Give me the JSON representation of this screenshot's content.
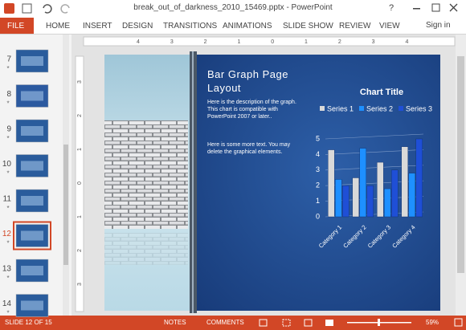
{
  "titlebar": {
    "title": "break_out_of_darkness_2010_15469.pptx - PowerPoint",
    "help": "?"
  },
  "ribbon": {
    "tabs": [
      "FILE",
      "HOME",
      "INSERT",
      "DESIGN",
      "TRANSITIONS",
      "ANIMATIONS",
      "SLIDE SHOW",
      "REVIEW",
      "VIEW"
    ],
    "sign_in": "Sign in"
  },
  "ruler": {
    "horizontal": [
      "4",
      "3",
      "2",
      "1",
      "0",
      "1",
      "2",
      "3",
      "4"
    ],
    "vertical": [
      "3",
      "2",
      "1",
      "0",
      "1",
      "2",
      "3"
    ]
  },
  "thumbnails": [
    "7",
    "8",
    "9",
    "10",
    "11",
    "12",
    "13",
    "14"
  ],
  "slide": {
    "title": "Bar Graph Page Layout",
    "paragraphs": [
      "Here is the description of the graph.  This chart is compatible with PowerPoint 2007 or later..",
      "Here is some more text.  You may delete the graphical elements."
    ],
    "chart": {
      "type": "bar",
      "title": "Chart Title",
      "categories": [
        "Category 1",
        "Category 2",
        "Category 3",
        "Category 4"
      ],
      "series": [
        {
          "name": "Series 1",
          "color": "#d9d9d9",
          "values": [
            4.3,
            2.5,
            3.5,
            4.5
          ]
        },
        {
          "name": "Series 2",
          "color": "#1e90ff",
          "values": [
            2.4,
            4.4,
            1.8,
            2.8
          ]
        },
        {
          "name": "Series 3",
          "color": "#1f4fd6",
          "values": [
            2,
            2,
            3,
            5
          ]
        }
      ],
      "ylim": [
        0,
        5
      ],
      "yticks": [
        0,
        1,
        2,
        3,
        4,
        5
      ],
      "grid": true
    }
  },
  "statusbar": {
    "slide": "SLIDE 12 OF 15",
    "notes": "NOTES",
    "comments": "COMMENTS",
    "zoom": "59%"
  }
}
